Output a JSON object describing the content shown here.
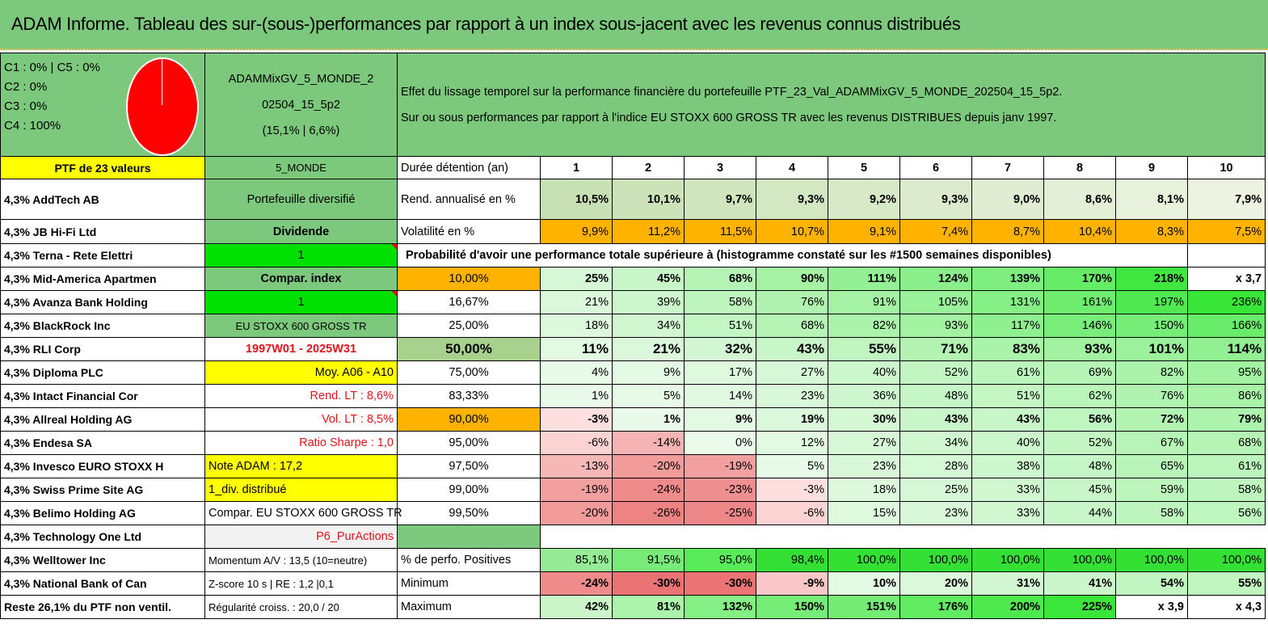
{
  "title": "ADAM Informe. Tableau des sur-(sous-)performances par rapport à un index sous-jacent avec les revenus connus distribués",
  "pie_legend": [
    "C1 : 0% | C5 : 0%",
    "C2 : 0%",
    "C3 : 0%",
    "C4 : 100%"
  ],
  "chart_data": {
    "type": "pie",
    "categories": [
      "C1",
      "C2",
      "C3",
      "C4",
      "C5"
    ],
    "values": [
      0,
      0,
      0,
      100,
      0
    ]
  },
  "portfolio_name_l1": "ADAMMixGV_5_MONDE_2",
  "portfolio_name_l2": "02504_15_5p2",
  "portfolio_name_l3": "(15,1% | 6,6%)",
  "description_l1": "Effet du lissage temporel sur la performance financière du portefeuille PTF_23_Val_ADAMMixGV_5_MONDE_202504_15_5p2.",
  "description_l2": "Sur ou sous performances par rapport à l'indice EU STOXX 600 GROSS TR avec les revenus DISTRIBUES depuis janv 1997.",
  "col0": [
    "PTF de 23 valeurs",
    "4,3% AddTech AB",
    "4,3% JB Hi-Fi Ltd",
    "4,3% Terna - Rete Elettri",
    "4,3% Mid-America Apartmen",
    "4,3% Avanza Bank Holding",
    "4,3% BlackRock Inc",
    "4,3% RLI Corp",
    "4,3% Diploma PLC",
    "4,3% Intact Financial Cor",
    "4,3% Allreal Holding AG",
    "4,3% Endesa SA",
    "4,3% Invesco EURO STOXX H",
    "4,3% Swiss Prime Site AG",
    "4,3% Belimo Holding AG",
    "4,3% Technology One Ltd",
    "4,3% Welltower Inc",
    "4,3% National Bank of Can",
    "Reste 26,1% du PTF non ventil."
  ],
  "col1": [
    "5_MONDE",
    "Portefeuille diversifié",
    "Dividende",
    "1",
    "Compar. index",
    "1",
    "EU STOXX 600 GROSS TR",
    "1997W01 - 2025W31",
    "Moy. A06 - A10",
    "Rend. LT : 8,6%",
    "Vol. LT : 8,5%",
    "Ratio Sharpe : 1,0",
    "Note ADAM : 17,2",
    "1_div. distribué",
    "Compar. EU STOXX 600 GROSS TR",
    "P6_PurActions",
    "Momentum A/V : 13,5 (10=neutre)",
    "Z-score 10 s | RE : 1,2 |0,1",
    "Régularité croiss. : 20,0 / 20"
  ],
  "header_row": {
    "label": "Durée détention (an)",
    "years": [
      "1",
      "2",
      "3",
      "4",
      "5",
      "6",
      "7",
      "8",
      "9",
      "10"
    ]
  },
  "rend_row": {
    "label": "Rend. annualisé en %",
    "values": [
      "10,5%",
      "10,1%",
      "9,7%",
      "9,3%",
      "9,2%",
      "9,3%",
      "9,0%",
      "8,6%",
      "8,1%",
      "7,9%"
    ]
  },
  "vol_row": {
    "label": "Volatilité en %",
    "values": [
      "9,9%",
      "11,2%",
      "11,5%",
      "10,7%",
      "9,1%",
      "7,4%",
      "8,7%",
      "10,4%",
      "8,3%",
      "7,5%"
    ]
  },
  "prob_title": "Probabilité d'avoir une performance totale supérieure à (histogramme constaté sur les #1500 semaines disponibles)",
  "prob_rows": [
    {
      "label": "10,00%",
      "values": [
        "25%",
        "45%",
        "68%",
        "90%",
        "111%",
        "124%",
        "139%",
        "170%",
        "218%",
        "x 3,7"
      ]
    },
    {
      "label": "16,67%",
      "values": [
        "21%",
        "39%",
        "58%",
        "76%",
        "91%",
        "105%",
        "131%",
        "161%",
        "197%",
        "236%"
      ]
    },
    {
      "label": "25,00%",
      "values": [
        "18%",
        "34%",
        "51%",
        "68%",
        "82%",
        "93%",
        "117%",
        "146%",
        "150%",
        "166%"
      ]
    },
    {
      "label": "50,00%",
      "values": [
        "11%",
        "21%",
        "32%",
        "43%",
        "55%",
        "71%",
        "83%",
        "93%",
        "101%",
        "114%"
      ]
    },
    {
      "label": "75,00%",
      "values": [
        "4%",
        "9%",
        "17%",
        "27%",
        "40%",
        "52%",
        "61%",
        "69%",
        "82%",
        "95%"
      ]
    },
    {
      "label": "83,33%",
      "values": [
        "1%",
        "5%",
        "14%",
        "23%",
        "36%",
        "48%",
        "51%",
        "62%",
        "76%",
        "86%"
      ]
    },
    {
      "label": "90,00%",
      "values": [
        "-3%",
        "1%",
        "9%",
        "19%",
        "30%",
        "43%",
        "43%",
        "56%",
        "72%",
        "79%"
      ]
    },
    {
      "label": "95,00%",
      "values": [
        "-6%",
        "-14%",
        "0%",
        "12%",
        "27%",
        "34%",
        "40%",
        "52%",
        "67%",
        "68%"
      ]
    },
    {
      "label": "97,50%",
      "values": [
        "-13%",
        "-20%",
        "-19%",
        "5%",
        "23%",
        "28%",
        "38%",
        "48%",
        "65%",
        "61%"
      ]
    },
    {
      "label": "99,00%",
      "values": [
        "-19%",
        "-24%",
        "-23%",
        "-3%",
        "18%",
        "25%",
        "33%",
        "45%",
        "59%",
        "58%"
      ]
    },
    {
      "label": "99,50%",
      "values": [
        "-20%",
        "-26%",
        "-25%",
        "-6%",
        "15%",
        "23%",
        "33%",
        "44%",
        "58%",
        "56%"
      ]
    }
  ],
  "pos_row": {
    "label": "% de perfo. Positives",
    "values": [
      "85,1%",
      "91,5%",
      "95,0%",
      "98,4%",
      "100,0%",
      "100,0%",
      "100,0%",
      "100,0%",
      "100,0%",
      "100,0%"
    ]
  },
  "min_row": {
    "label": "Minimum",
    "values": [
      "-24%",
      "-30%",
      "-30%",
      "-9%",
      "10%",
      "20%",
      "31%",
      "41%",
      "54%",
      "55%"
    ]
  },
  "max_row": {
    "label": "Maximum",
    "values": [
      "42%",
      "81%",
      "132%",
      "150%",
      "151%",
      "176%",
      "200%",
      "225%",
      "x 3,9",
      "x 4,3"
    ]
  },
  "colors": {
    "title_green": "#7cc87c",
    "yellow": "#ffff00",
    "bright_green": "#00e000",
    "orange": "#ffb300",
    "mid_green": "#7cc87c",
    "red_text": "#e0141a",
    "pie_red": "#ff0000"
  }
}
